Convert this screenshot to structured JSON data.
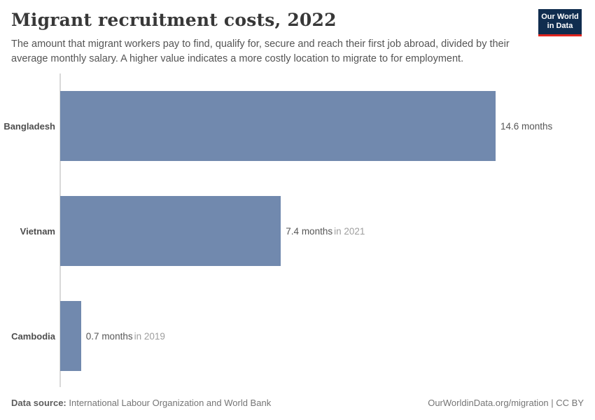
{
  "header": {
    "title": "Migrant recruitment costs, 2022",
    "subtitle": "The amount that migrant workers pay to find, qualify for, secure and reach their first job abroad, divided by their average monthly salary. A higher value indicates a more costly location to migrate to for employment.",
    "logo": {
      "line1": "Our World",
      "line2": "in Data",
      "bg_color": "#102d4f",
      "accent_color": "#e0251f"
    }
  },
  "chart_data": {
    "type": "bar",
    "orientation": "horizontal",
    "title": "Migrant recruitment costs, 2022",
    "unit": "months",
    "categories": [
      "Bangladesh",
      "Vietnam",
      "Cambodia"
    ],
    "values": [
      14.6,
      7.4,
      0.7
    ],
    "value_labels": [
      "14.6 months",
      "7.4 months",
      "0.7 months"
    ],
    "time_notes": [
      "",
      "in 2021",
      "in 2019"
    ],
    "xlim": [
      0,
      14.6
    ],
    "bar_color": "#7189ae",
    "grid": false,
    "legend": false
  },
  "footer": {
    "source_label": "Data source:",
    "source_text": " International Labour Organization and World Bank",
    "right_text": "OurWorldinData.org/migration | CC BY"
  }
}
